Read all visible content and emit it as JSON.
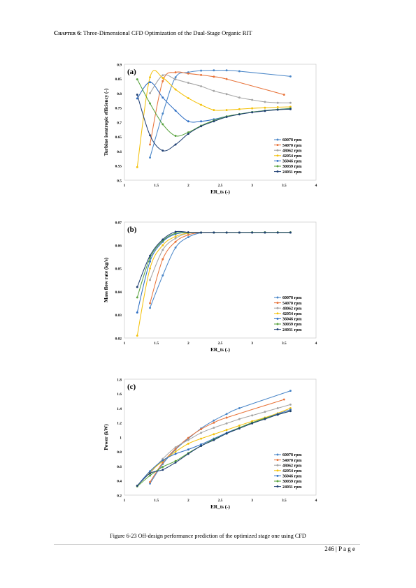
{
  "header": {
    "chapter": "Chapter 6",
    "title": ": Three-Dimensional CFD Optimization of the Dual-Stage Organic RIT"
  },
  "caption": "Figure 6-23 Off-design performance prediction of the optimized stage one using CFD",
  "page_number": "246 | P a g e",
  "colors": {
    "60078 rpm": "#4a86c8",
    "54070 rpm": "#e8743b",
    "48062 rpm": "#a5a5a5",
    "42054 rpm": "#f4c20d",
    "36046 rpm": "#2f6fc4",
    "30039 rpm": "#5aa33f",
    "24031 rpm": "#1f3f73"
  },
  "chart_data": [
    {
      "id": "a",
      "type": "line",
      "panel_label": "(a)",
      "xlabel": "ER_ts (-)",
      "ylabel": "Turbine isentropic efficiency (-)",
      "xlim": [
        1,
        4
      ],
      "ylim": [
        0.5,
        0.9
      ],
      "xticks": [
        "1",
        "1.5",
        "2",
        "2.5",
        "3",
        "3.5",
        "4"
      ],
      "yticks": [
        "0.5",
        "0.55",
        "0.6",
        "0.65",
        "0.7",
        "0.75",
        "0.8",
        "0.85",
        "0.9"
      ],
      "legend": "right-bottom",
      "series": [
        {
          "name": "60078 rpm",
          "x": [
            1.4,
            1.6,
            1.8,
            2.0,
            2.2,
            2.4,
            2.6,
            2.8,
            3.6
          ],
          "y": [
            0.578,
            0.73,
            0.855,
            0.872,
            0.878,
            0.879,
            0.879,
            0.876,
            0.858
          ]
        },
        {
          "name": "54070 rpm",
          "x": [
            1.4,
            1.6,
            1.8,
            2.0,
            2.2,
            2.4,
            2.6,
            3.5
          ],
          "y": [
            0.623,
            0.842,
            0.872,
            0.868,
            0.863,
            0.857,
            0.849,
            0.795
          ]
        },
        {
          "name": "48062 rpm",
          "x": [
            1.4,
            1.6,
            1.8,
            2.0,
            2.2,
            2.4,
            2.6,
            2.8,
            3.0,
            3.2,
            3.4,
            3.6
          ],
          "y": [
            0.8,
            0.862,
            0.848,
            0.836,
            0.824,
            0.808,
            0.797,
            0.785,
            0.777,
            0.77,
            0.767,
            0.767
          ]
        },
        {
          "name": "42054 rpm",
          "x": [
            1.2,
            1.4,
            1.6,
            1.8,
            2.0,
            2.2,
            2.4,
            2.6,
            2.8,
            3.0,
            3.2,
            3.4,
            3.6
          ],
          "y": [
            0.545,
            0.855,
            0.853,
            0.813,
            0.783,
            0.76,
            0.742,
            0.742,
            0.745,
            0.748,
            0.75,
            0.752,
            0.753
          ]
        },
        {
          "name": "36046 rpm",
          "x": [
            1.2,
            1.4,
            1.6,
            1.8,
            2.0,
            2.2,
            2.4,
            2.6,
            2.8,
            3.0,
            3.2,
            3.4,
            3.6
          ],
          "y": [
            0.782,
            0.838,
            0.785,
            0.74,
            0.703,
            0.703,
            0.71,
            0.72,
            0.728,
            0.735,
            0.74,
            0.744,
            0.748
          ]
        },
        {
          "name": "30039 rpm",
          "x": [
            1.2,
            1.4,
            1.6,
            1.8,
            2.0,
            2.2,
            2.4,
            2.6,
            2.8,
            3.0,
            3.2,
            3.4,
            3.6
          ],
          "y": [
            0.848,
            0.765,
            0.693,
            0.653,
            0.665,
            0.688,
            0.706,
            0.72,
            0.728,
            0.735,
            0.74,
            0.744,
            0.747
          ]
        },
        {
          "name": "24031 rpm",
          "x": [
            1.2,
            1.4,
            1.6,
            1.8,
            2.0,
            2.2,
            2.4,
            2.6,
            2.8,
            3.0,
            3.2,
            3.4,
            3.6
          ],
          "y": [
            0.795,
            0.655,
            0.602,
            0.623,
            0.66,
            0.686,
            0.703,
            0.718,
            0.727,
            0.734,
            0.739,
            0.743,
            0.745
          ]
        }
      ]
    },
    {
      "id": "b",
      "type": "line",
      "panel_label": "(b)",
      "xlabel": "ER_ts (-)",
      "ylabel": "Mass flow rate (kg/s)",
      "xlim": [
        1,
        4
      ],
      "ylim": [
        0.02,
        0.07
      ],
      "xticks": [
        "1",
        "1.5",
        "2",
        "2.5",
        "3",
        "3.5",
        "4"
      ],
      "yticks": [
        "0.02",
        "0.03",
        "0.04",
        "0.05",
        "0.06",
        "0.07"
      ],
      "legend": "right-bottom",
      "series": [
        {
          "name": "60078 rpm",
          "x": [
            1.4,
            1.6,
            1.8,
            2.0,
            2.2,
            2.4,
            2.6,
            2.8,
            3.0,
            3.2,
            3.4,
            3.6
          ],
          "y": [
            0.033,
            0.047,
            0.059,
            0.0635,
            0.0654,
            0.0655,
            0.0655,
            0.0655,
            0.0655,
            0.0655,
            0.0655,
            0.0655
          ]
        },
        {
          "name": "54070 rpm",
          "x": [
            1.4,
            1.6,
            1.8,
            2.0,
            2.2,
            2.4,
            2.6,
            2.8,
            3.0,
            3.2,
            3.4,
            3.6
          ],
          "y": [
            0.035,
            0.054,
            0.0615,
            0.0645,
            0.0655,
            0.0655,
            0.0655,
            0.0655,
            0.0655,
            0.0655,
            0.0655,
            0.0655
          ]
        },
        {
          "name": "48062 rpm",
          "x": [
            1.4,
            1.6,
            1.8,
            2.0,
            2.2,
            2.4,
            2.6,
            2.8,
            3.0,
            3.2,
            3.4,
            3.6
          ],
          "y": [
            0.045,
            0.058,
            0.063,
            0.0652,
            0.0655,
            0.0655,
            0.0655,
            0.0655,
            0.0655,
            0.0655,
            0.0655,
            0.0655
          ]
        },
        {
          "name": "42054 rpm",
          "x": [
            1.2,
            1.4,
            1.6,
            1.8,
            2.0,
            2.2,
            2.4,
            2.6,
            2.8,
            3.0,
            3.2,
            3.4,
            3.6
          ],
          "y": [
            0.021,
            0.05,
            0.06,
            0.0638,
            0.0653,
            0.0655,
            0.0655,
            0.0655,
            0.0655,
            0.0655,
            0.0655,
            0.0655,
            0.0655
          ]
        },
        {
          "name": "36046 rpm",
          "x": [
            1.2,
            1.4,
            1.6,
            1.8,
            2.0,
            2.2,
            2.4,
            2.6,
            2.8,
            3.0,
            3.2,
            3.4,
            3.6
          ],
          "y": [
            0.031,
            0.053,
            0.0615,
            0.0648,
            0.0655,
            0.0655,
            0.0655,
            0.0655,
            0.0655,
            0.0655,
            0.0655,
            0.0655,
            0.0655
          ]
        },
        {
          "name": "30039 rpm",
          "x": [
            1.2,
            1.4,
            1.6,
            1.8,
            2.0,
            2.2,
            2.4,
            2.6,
            2.8,
            3.0,
            3.2,
            3.4,
            3.6
          ],
          "y": [
            0.0375,
            0.0545,
            0.062,
            0.0652,
            0.0655,
            0.0655,
            0.0655,
            0.0655,
            0.0655,
            0.0656,
            0.0656,
            0.0656,
            0.0656
          ]
        },
        {
          "name": "24031 rpm",
          "x": [
            1.2,
            1.4,
            1.6,
            1.8,
            2.0,
            2.2,
            2.4,
            2.6,
            2.8,
            3.0,
            3.2,
            3.4,
            3.6
          ],
          "y": [
            0.042,
            0.0555,
            0.0625,
            0.0658,
            0.0656,
            0.0655,
            0.0655,
            0.0655,
            0.0655,
            0.0655,
            0.0655,
            0.0655,
            0.0655
          ]
        }
      ]
    },
    {
      "id": "c",
      "type": "line",
      "panel_label": "(c)",
      "xlabel": "ER_ts (-)",
      "ylabel": "Power (kW)",
      "xlim": [
        1,
        4
      ],
      "ylim": [
        0.2,
        1.8
      ],
      "xticks": [
        "1",
        "1.5",
        "2",
        "2.5",
        "3",
        "3.5",
        "4"
      ],
      "yticks": [
        "0.2",
        "0.4",
        "0.6",
        "0.8",
        "1",
        "1.2",
        "1.4",
        "1.6",
        "1.8"
      ],
      "legend": "right-bottom",
      "series": [
        {
          "name": "60078 rpm",
          "x": [
            1.4,
            1.6,
            1.8,
            2.0,
            2.2,
            2.4,
            2.6,
            2.8,
            3.6
          ],
          "y": [
            0.36,
            0.63,
            0.83,
            0.98,
            1.12,
            1.23,
            1.32,
            1.4,
            1.64
          ]
        },
        {
          "name": "54070 rpm",
          "x": [
            1.4,
            1.6,
            1.8,
            2.0,
            2.2,
            2.4,
            2.6,
            3.5
          ],
          "y": [
            0.38,
            0.65,
            0.84,
            0.99,
            1.11,
            1.2,
            1.27,
            1.52
          ]
        },
        {
          "name": "48062 rpm",
          "x": [
            1.4,
            1.6,
            1.8,
            2.0,
            2.2,
            2.4,
            2.6,
            2.8,
            3.0,
            3.2,
            3.4,
            3.6
          ],
          "y": [
            0.5,
            0.7,
            0.86,
            0.96,
            1.06,
            1.13,
            1.19,
            1.25,
            1.3,
            1.35,
            1.4,
            1.45
          ]
        },
        {
          "name": "42054 rpm",
          "x": [
            1.2,
            1.4,
            1.6,
            1.8,
            2.0,
            2.2,
            2.4,
            2.6,
            2.8,
            3.0,
            3.2,
            3.4,
            3.6
          ],
          "y": [
            0.33,
            0.52,
            0.67,
            0.8,
            0.91,
            0.98,
            1.04,
            1.1,
            1.16,
            1.22,
            1.27,
            1.33,
            1.4
          ]
        },
        {
          "name": "36046 rpm",
          "x": [
            1.2,
            1.4,
            1.6,
            1.8,
            2.0,
            2.2,
            2.4,
            2.6,
            2.8,
            3.0,
            3.2,
            3.4,
            3.6
          ],
          "y": [
            0.33,
            0.53,
            0.68,
            0.77,
            0.83,
            0.9,
            0.98,
            1.06,
            1.13,
            1.2,
            1.26,
            1.32,
            1.38
          ]
        },
        {
          "name": "30039 rpm",
          "x": [
            1.2,
            1.4,
            1.6,
            1.8,
            2.0,
            2.2,
            2.4,
            2.6,
            2.8,
            3.0,
            3.2,
            3.4,
            3.6
          ],
          "y": [
            0.32,
            0.47,
            0.59,
            0.67,
            0.78,
            0.88,
            0.97,
            1.05,
            1.13,
            1.2,
            1.26,
            1.31,
            1.36
          ]
        },
        {
          "name": "24031 rpm",
          "x": [
            1.2,
            1.4,
            1.6,
            1.8,
            2.0,
            2.2,
            2.4,
            2.6,
            2.8,
            3.0,
            3.2,
            3.4,
            3.6
          ],
          "y": [
            0.33,
            0.5,
            0.55,
            0.65,
            0.77,
            0.88,
            0.96,
            1.05,
            1.12,
            1.19,
            1.25,
            1.31,
            1.36
          ]
        }
      ]
    }
  ]
}
